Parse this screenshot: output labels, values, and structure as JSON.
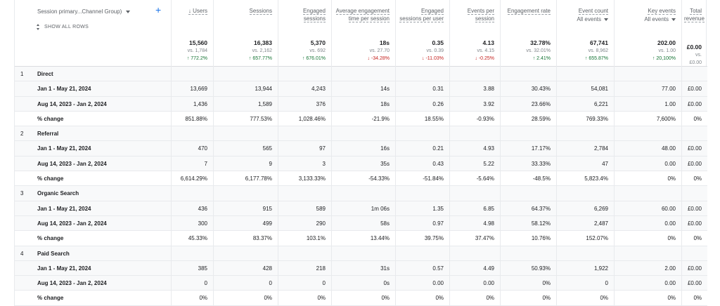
{
  "dimension": {
    "label": "Session primary...Channel Group)",
    "show_all": "SHOW ALL ROWS",
    "add": "+"
  },
  "metrics": [
    {
      "label": "↓ Users",
      "sub": "",
      "total": "15,560",
      "vs": "vs. 1,784",
      "change": "↑ 772.2%",
      "dir": "up"
    },
    {
      "label": "Sessions",
      "sub": "",
      "total": "16,383",
      "vs": "vs. 2,162",
      "change": "↑ 657.77%",
      "dir": "up"
    },
    {
      "label": "Engaged sessions",
      "sub": "",
      "total": "5,370",
      "vs": "vs. 692",
      "change": "↑ 676.01%",
      "dir": "up"
    },
    {
      "label": "Average engagement time per session",
      "sub": "",
      "total": "18s",
      "vs": "vs. 27.70",
      "change": "↓ -34.28%",
      "dir": "down"
    },
    {
      "label": "Engaged sessions per user",
      "sub": "",
      "total": "0.35",
      "vs": "vs. 0.39",
      "change": "↓ -11.03%",
      "dir": "down"
    },
    {
      "label": "Events per session",
      "sub": "",
      "total": "4.13",
      "vs": "vs. 4.15",
      "change": "↓ -0.25%",
      "dir": "down"
    },
    {
      "label": "Engagement rate",
      "sub": "",
      "total": "32.78%",
      "vs": "vs. 32.01%",
      "change": "↑ 2.41%",
      "dir": "up"
    },
    {
      "label": "Event count",
      "sub": "All events",
      "total": "67,741",
      "vs": "vs. 8,962",
      "change": "↑ 655.87%",
      "dir": "up"
    },
    {
      "label": "Key events",
      "sub": "All events",
      "total": "202.00",
      "vs": "vs. 1.00",
      "change": "↑ 20,100%",
      "dir": "up"
    },
    {
      "label": "Total revenue",
      "sub": "",
      "total": "£0.00",
      "vs": "vs. £0.00",
      "change": "",
      "dir": ""
    }
  ],
  "groups": [
    {
      "num": "1",
      "name": "Direct",
      "rows": [
        {
          "label": "Jan 1 - May 21, 2024",
          "values": [
            "13,669",
            "13,944",
            "4,243",
            "14s",
            "0.31",
            "3.88",
            "30.43%",
            "54,081",
            "77.00",
            "£0.00"
          ]
        },
        {
          "label": "Aug 14, 2023 - Jan 2, 2024",
          "values": [
            "1,436",
            "1,589",
            "376",
            "18s",
            "0.26",
            "3.92",
            "23.66%",
            "6,221",
            "1.00",
            "£0.00"
          ]
        },
        {
          "label": "% change",
          "values": [
            "851.88%",
            "777.53%",
            "1,028.46%",
            "-21.9%",
            "18.55%",
            "-0.93%",
            "28.59%",
            "769.33%",
            "7,600%",
            "0%"
          ]
        }
      ]
    },
    {
      "num": "2",
      "name": "Referral",
      "rows": [
        {
          "label": "Jan 1 - May 21, 2024",
          "values": [
            "470",
            "565",
            "97",
            "16s",
            "0.21",
            "4.93",
            "17.17%",
            "2,784",
            "48.00",
            "£0.00"
          ]
        },
        {
          "label": "Aug 14, 2023 - Jan 2, 2024",
          "values": [
            "7",
            "9",
            "3",
            "35s",
            "0.43",
            "5.22",
            "33.33%",
            "47",
            "0.00",
            "£0.00"
          ]
        },
        {
          "label": "% change",
          "values": [
            "6,614.29%",
            "6,177.78%",
            "3,133.33%",
            "-54.33%",
            "-51.84%",
            "-5.64%",
            "-48.5%",
            "5,823.4%",
            "0%",
            "0%"
          ]
        }
      ]
    },
    {
      "num": "3",
      "name": "Organic Search",
      "rows": [
        {
          "label": "Jan 1 - May 21, 2024",
          "values": [
            "436",
            "915",
            "589",
            "1m 06s",
            "1.35",
            "6.85",
            "64.37%",
            "6,269",
            "60.00",
            "£0.00"
          ]
        },
        {
          "label": "Aug 14, 2023 - Jan 2, 2024",
          "values": [
            "300",
            "499",
            "290",
            "58s",
            "0.97",
            "4.98",
            "58.12%",
            "2,487",
            "0.00",
            "£0.00"
          ]
        },
        {
          "label": "% change",
          "values": [
            "45.33%",
            "83.37%",
            "103.1%",
            "13.44%",
            "39.75%",
            "37.47%",
            "10.76%",
            "152.07%",
            "0%",
            "0%"
          ]
        }
      ]
    },
    {
      "num": "4",
      "name": "Paid Search",
      "rows": [
        {
          "label": "Jan 1 - May 21, 2024",
          "values": [
            "385",
            "428",
            "218",
            "31s",
            "0.57",
            "4.49",
            "50.93%",
            "1,922",
            "2.00",
            "£0.00"
          ]
        },
        {
          "label": "Aug 14, 2023 - Jan 2, 2024",
          "values": [
            "0",
            "0",
            "0",
            "0s",
            "0.00",
            "0.00",
            "0%",
            "0",
            "0.00",
            "£0.00"
          ]
        },
        {
          "label": "% change",
          "values": [
            "0%",
            "0%",
            "0%",
            "0%",
            "0%",
            "0%",
            "0%",
            "0%",
            "0%",
            "0%"
          ]
        }
      ]
    }
  ]
}
